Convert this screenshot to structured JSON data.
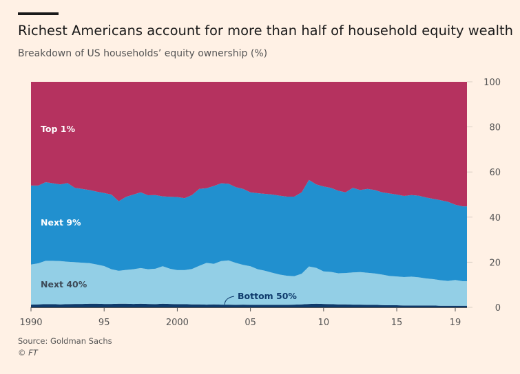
{
  "header": {
    "title": "Richest Americans account for more than half of household equity wealth",
    "subtitle": "Breakdown of US households’ equity ownership (%)"
  },
  "footer": {
    "source": "Source: Goldman Sachs",
    "credit": "© FT"
  },
  "colors": {
    "top1": "#b5325f",
    "next9": "#2190cf",
    "next40": "#93cfe6",
    "bottom50": "#0e3a6b",
    "grid": "#d9cfc4"
  },
  "chart_data": {
    "type": "area",
    "stacked": true,
    "title": "Richest Americans account for more than half of household equity wealth",
    "ylabel": "Breakdown of US households’ equity ownership (%)",
    "xlim": [
      1990,
      2019.8
    ],
    "ylim": [
      0,
      100
    ],
    "x_ticks": [
      1990,
      1995,
      2000,
      2005,
      2010,
      2015,
      2019
    ],
    "x_tick_labels": [
      "1990",
      "95",
      "2000",
      "05",
      "10",
      "15",
      "19"
    ],
    "y_ticks": [
      0,
      20,
      40,
      60,
      80,
      100
    ],
    "y_tick_labels": [
      "0",
      "20",
      "40",
      "60",
      "80",
      "100"
    ],
    "x": [
      1990,
      1990.5,
      1991,
      1991.5,
      1992,
      1992.5,
      1993,
      1993.5,
      1994,
      1994.5,
      1995,
      1995.5,
      1996,
      1996.5,
      1997,
      1997.5,
      1998,
      1998.5,
      1999,
      1999.5,
      2000,
      2000.5,
      2001,
      2001.5,
      2002,
      2002.5,
      2003,
      2003.5,
      2004,
      2004.5,
      2005,
      2005.5,
      2006,
      2006.5,
      2007,
      2007.5,
      2008,
      2008.5,
      2009,
      2009.5,
      2010,
      2010.5,
      2011,
      2011.5,
      2012,
      2012.5,
      2013,
      2013.5,
      2014,
      2014.5,
      2015,
      2015.5,
      2016,
      2016.5,
      2017,
      2017.5,
      2018,
      2018.5,
      2019,
      2019.5,
      2019.8
    ],
    "series": [
      {
        "name": "Bottom 50%",
        "label": "Bottom 50%",
        "values": [
          1.2,
          1.3,
          1.4,
          1.4,
          1.3,
          1.4,
          1.5,
          1.5,
          1.6,
          1.6,
          1.5,
          1.5,
          1.6,
          1.6,
          1.5,
          1.6,
          1.5,
          1.4,
          1.6,
          1.5,
          1.4,
          1.4,
          1.3,
          1.3,
          1.2,
          1.3,
          1.2,
          1.2,
          1.1,
          1.2,
          1.1,
          1.1,
          1.1,
          1.1,
          1.1,
          1.1,
          1.2,
          1.3,
          1.5,
          1.6,
          1.5,
          1.4,
          1.3,
          1.3,
          1.2,
          1.2,
          1.1,
          1.1,
          1.0,
          0.9,
          0.9,
          0.8,
          0.8,
          0.8,
          0.8,
          0.8,
          0.7,
          0.7,
          0.7,
          0.7,
          0.7
        ]
      },
      {
        "name": "Next 40%",
        "label": "Next 40%",
        "values": [
          17.8,
          18.2,
          19.2,
          19.2,
          19.2,
          18.8,
          18.5,
          18.3,
          18.0,
          17.4,
          16.8,
          15.4,
          14.6,
          15.0,
          15.4,
          15.8,
          15.4,
          15.7,
          16.6,
          15.6,
          15.1,
          15.1,
          15.7,
          17.1,
          18.5,
          18.0,
          19.3,
          19.6,
          18.6,
          17.6,
          17.1,
          15.8,
          15.1,
          14.2,
          13.4,
          12.9,
          12.6,
          13.6,
          16.6,
          15.9,
          14.4,
          14.3,
          13.8,
          13.9,
          14.3,
          14.4,
          14.2,
          13.9,
          13.5,
          13.0,
          12.8,
          12.6,
          12.8,
          12.5,
          12.0,
          11.7,
          11.3,
          11.0,
          11.4,
          10.9,
          10.9
        ]
      },
      {
        "name": "Next 9%",
        "label": "Next 9%",
        "values": [
          35,
          34.5,
          34.9,
          34.4,
          34,
          34.9,
          33.0,
          32.7,
          32.4,
          32.3,
          32.4,
          33.1,
          30.8,
          32.4,
          33.1,
          33.6,
          32.8,
          32.7,
          31.0,
          31.9,
          32.4,
          31.9,
          32.8,
          34.1,
          33.1,
          34.5,
          34.5,
          34.0,
          33.6,
          33.7,
          32.8,
          33.7,
          34.1,
          34.7,
          35.0,
          35.1,
          35.3,
          36.1,
          38.4,
          37.0,
          37.7,
          37.3,
          36.6,
          35.8,
          37.5,
          36.4,
          37.2,
          37.0,
          36.5,
          36.6,
          36.3,
          36.0,
          36.2,
          36.2,
          35.9,
          35.6,
          35.5,
          35.1,
          33.4,
          33.2,
          33.2
        ]
      },
      {
        "name": "Top 1%",
        "label": "Top 1%",
        "values": [
          46,
          46,
          44.5,
          45,
          45.5,
          44.9,
          47,
          47.5,
          48,
          48.7,
          49.3,
          50,
          53,
          51,
          50,
          49,
          50.3,
          50.2,
          50.8,
          51,
          51.1,
          51.6,
          50.2,
          47.5,
          47.2,
          46.2,
          45,
          45.2,
          46.7,
          47.5,
          49,
          49.4,
          49.7,
          50,
          50.5,
          50.9,
          50.9,
          49,
          43.5,
          45.5,
          46.4,
          47,
          48.3,
          49,
          47,
          48,
          47.5,
          48,
          49,
          49.5,
          50,
          50.6,
          50.2,
          50.5,
          51.3,
          51.9,
          52.5,
          53.2,
          54.5,
          55.2,
          55.2
        ]
      }
    ],
    "legend": "direct labels on areas",
    "grid": false
  }
}
